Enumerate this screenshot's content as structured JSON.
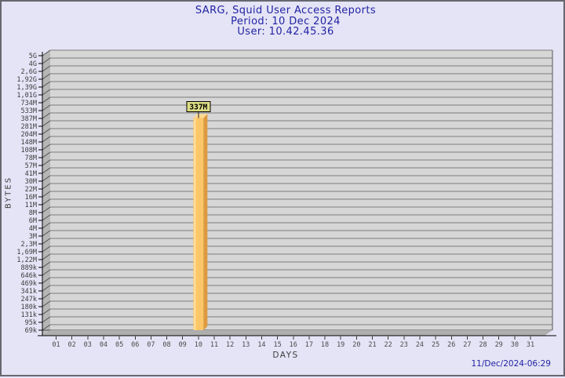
{
  "header": {
    "title": "SARG, Squid User Access Reports",
    "period": "Period: 10 Dec 2024",
    "user": "User: 10.42.45.36"
  },
  "footer": {
    "timestamp": "11/Dec/2024-06:29"
  },
  "chart_data": {
    "type": "bar",
    "title": "SARG, Squid User Access Reports",
    "subtitle_lines": [
      "Period: 10 Dec 2024",
      "User: 10.42.45.36"
    ],
    "xlabel": "DAYS",
    "ylabel": "BYTES",
    "grid": true,
    "legend": false,
    "scale": "log-like",
    "x_categories": [
      "01",
      "02",
      "03",
      "04",
      "05",
      "06",
      "07",
      "08",
      "09",
      "10",
      "11",
      "12",
      "13",
      "14",
      "15",
      "16",
      "17",
      "18",
      "19",
      "20",
      "21",
      "22",
      "23",
      "24",
      "25",
      "26",
      "27",
      "28",
      "29",
      "30",
      "31"
    ],
    "y_tick_labels": [
      "5G",
      "4G",
      "2,6G",
      "1,92G",
      "1,39G",
      "1,01G",
      "734M",
      "533M",
      "387M",
      "281M",
      "204M",
      "148M",
      "108M",
      "78M",
      "57M",
      "41M",
      "30M",
      "22M",
      "16M",
      "11M",
      "8M",
      "6M",
      "4M",
      "3M",
      "2,3M",
      "1,69M",
      "1,22M",
      "889k",
      "646k",
      "469k",
      "341k",
      "247k",
      "180k",
      "131k",
      "95k",
      "69k"
    ],
    "bars": [
      {
        "category": "10",
        "value_label": "337M"
      }
    ]
  },
  "colors": {
    "background": "#e4e4f6",
    "frame_border": "#67676f",
    "title_text": "#2323a4",
    "plot_wall": "#d6d6d6",
    "gridline": "#7c7c7c",
    "side_wall": "#b6b6b6",
    "floor": "#aeaeae",
    "axis": "#000000",
    "tick_text": "#3c3c3c",
    "bar_face": "#fdc769",
    "bar_highlight": "#ffe2a5",
    "bar_side": "#dd9a3f",
    "bar_top": "#ffd98e",
    "value_box_bg": "#dcdc84",
    "value_box_border": "#000000"
  }
}
